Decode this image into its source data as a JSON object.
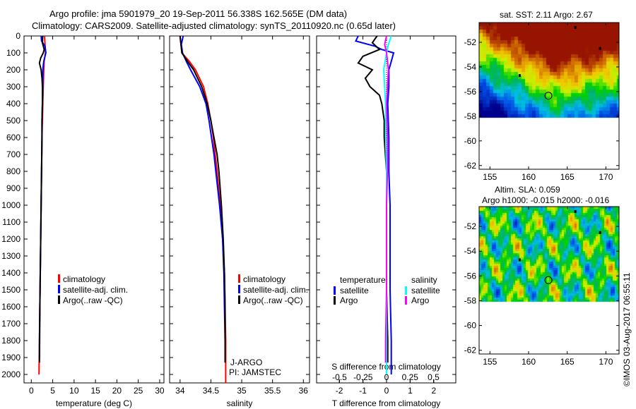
{
  "title_line1": "Argo profile: jma 5901979_20 19-Sep-2011 56.338S 162.565E (DM data)",
  "title_line2": "Climatology: CARS2009. Satellite-adjusted climatology: synTS_20110920.nc (0.65d later)",
  "colors": {
    "climatology": "#ff0000",
    "satellite": "#0000ff",
    "argo": "#000000",
    "sal_satellite": "#00ffff",
    "sal_argo": "#ff00ff"
  },
  "chart_data": [
    {
      "type": "line",
      "name": "temperature-profile",
      "xlabel": "temperature (deg C)",
      "ylabel": "depth",
      "xlim": [
        -1.7,
        31
      ],
      "ylim": [
        2050,
        0
      ],
      "xticks": [
        0,
        5,
        10,
        15,
        20,
        25,
        30
      ],
      "yticks": [
        0,
        100,
        200,
        300,
        400,
        500,
        600,
        700,
        800,
        900,
        1000,
        1100,
        1200,
        1300,
        1400,
        1500,
        1600,
        1700,
        1800,
        1900,
        2000
      ],
      "legend": [
        "climatology",
        "satellite-adj. clim.",
        "Argo(..raw -QC)"
      ],
      "series": [
        {
          "name": "climatology",
          "color": "#ff0000",
          "depth": [
            0,
            50,
            100,
            150,
            200,
            300,
            400,
            500,
            600,
            800,
            1000,
            1200,
            1400,
            1600,
            1800,
            2000
          ],
          "values": [
            3.1,
            3.2,
            3.3,
            3.0,
            2.9,
            2.8,
            2.7,
            2.6,
            2.5,
            2.4,
            2.3,
            2.2,
            2.1,
            2.0,
            1.9,
            1.8
          ]
        },
        {
          "name": "satellite-adj. clim.",
          "color": "#0000ff",
          "depth": [
            0,
            30,
            60,
            100,
            150,
            200,
            300,
            400,
            500,
            600,
            800,
            1000,
            1200,
            1400,
            1600,
            1800,
            1900
          ],
          "values": [
            2.3,
            2.4,
            3.2,
            3.4,
            2.9,
            2.7,
            2.7,
            2.6,
            2.5,
            2.5,
            2.4,
            2.3,
            2.2,
            2.1,
            2.0,
            1.9,
            1.9
          ]
        },
        {
          "name": "Argo(..raw -QC)",
          "color": "#000000",
          "depth": [
            0,
            40,
            80,
            100,
            130,
            160,
            200,
            250,
            300,
            400,
            500,
            600,
            800,
            1000,
            1200,
            1400,
            1600,
            1800,
            1930
          ],
          "values": [
            2.67,
            2.6,
            3.0,
            2.8,
            2.2,
            1.9,
            2.3,
            2.5,
            2.6,
            2.6,
            2.5,
            2.5,
            2.4,
            2.3,
            2.2,
            2.1,
            2.0,
            1.95,
            1.9
          ]
        }
      ]
    },
    {
      "type": "line",
      "name": "salinity-profile",
      "xlabel": "salinity",
      "xlim": [
        33.83,
        36.1
      ],
      "ylim": [
        2050,
        0
      ],
      "xticks": [
        34,
        34.5,
        35,
        35.5,
        36
      ],
      "legend": [
        "climatology",
        "satellite-adj. clim.",
        "Argo(..raw -QC)"
      ],
      "annotations": [
        "J-ARGO",
        "PI: JAMSTEC"
      ],
      "series": [
        {
          "name": "climatology",
          "color": "#ff0000",
          "depth": [
            0,
            100,
            150,
            200,
            300,
            400,
            500,
            600,
            700,
            800,
            1000,
            1200,
            1400,
            1600,
            1800,
            2050
          ],
          "values": [
            34.0,
            34.03,
            34.15,
            34.25,
            34.38,
            34.45,
            34.5,
            34.54,
            34.57,
            34.6,
            34.65,
            34.69,
            34.72,
            34.73,
            34.74,
            34.74
          ]
        },
        {
          "name": "satellite-adj. clim.",
          "color": "#0000ff",
          "depth": [
            0,
            50,
            100,
            150,
            200,
            300,
            400,
            500,
            600,
            700,
            800,
            1000,
            1200,
            1400,
            1600,
            1800,
            1900
          ],
          "values": [
            34.05,
            34.02,
            34.04,
            34.1,
            34.17,
            34.32,
            34.42,
            34.47,
            34.51,
            34.55,
            34.58,
            34.64,
            34.69,
            34.71,
            34.72,
            34.73,
            34.73
          ]
        },
        {
          "name": "Argo(..raw -QC)",
          "color": "#000000",
          "depth": [
            0,
            100,
            150,
            200,
            300,
            400,
            500,
            600,
            700,
            800,
            1000,
            1200,
            1400,
            1600,
            1800,
            1930
          ],
          "values": [
            34.0,
            34.03,
            34.12,
            34.22,
            34.35,
            34.44,
            34.5,
            34.55,
            34.6,
            34.63,
            34.67,
            34.7,
            34.72,
            34.73,
            34.73,
            34.73
          ]
        }
      ]
    },
    {
      "type": "line",
      "name": "difference-profile",
      "xlabel": "T difference from climatology",
      "xlabel2": "S difference from climatology",
      "xlim": [
        -2.96,
        2.93
      ],
      "xticks": [
        -2,
        -1,
        0,
        1,
        2
      ],
      "xticks2": [
        "-0.5",
        "-0.25",
        "0",
        "0.25",
        "0.5"
      ],
      "legend_headers": [
        "temperature",
        "salinity"
      ],
      "legend": [
        "satellite",
        "Argo",
        "satellite",
        "Argo"
      ],
      "series": [
        {
          "name": "temperature satellite",
          "color": "#0000ff",
          "depth": [
            0,
            30,
            60,
            80,
            100,
            150,
            200,
            300,
            400,
            600,
            800,
            1000,
            1200,
            1500,
            1800,
            2000
          ],
          "values": [
            -1.2,
            -1.3,
            -0.5,
            -0.2,
            0.3,
            0.2,
            0.1,
            0.1,
            0.05,
            0.1,
            0.1,
            0.15,
            0.15,
            0.15,
            0.2,
            0.2
          ]
        },
        {
          "name": "temperature Argo",
          "color": "#000000",
          "depth": [
            0,
            40,
            80,
            120,
            160,
            200,
            250,
            300,
            350,
            400,
            500,
            600,
            800,
            1000,
            1200,
            1500,
            1800,
            1930
          ],
          "values": [
            -0.4,
            -0.6,
            -0.3,
            -1.0,
            -1.2,
            -0.6,
            -0.9,
            -0.7,
            -0.3,
            -0.2,
            -0.1,
            -0.1,
            0.0,
            0.0,
            0.0,
            0.0,
            0.05,
            0.05
          ]
        },
        {
          "name": "salinity satellite",
          "color": "#00ffff",
          "depth": [
            0,
            50,
            100,
            200,
            300,
            400,
            600,
            800,
            1000,
            1200,
            1500,
            1800,
            2000
          ],
          "values": [
            0.05,
            0.02,
            0.0,
            -0.03,
            -0.02,
            -0.01,
            -0.01,
            0.0,
            0.0,
            0.0,
            0.0,
            0.0,
            0.0
          ]
        },
        {
          "name": "salinity Argo",
          "color": "#ff00ff",
          "depth": [
            0,
            50,
            100,
            200,
            300,
            400,
            600,
            800,
            1000,
            1200,
            1500,
            1800,
            1930
          ],
          "values": [
            0.0,
            -0.02,
            0.0,
            0.02,
            0.01,
            0.0,
            0.01,
            0.01,
            0.0,
            0.0,
            0.0,
            -0.01,
            -0.01
          ]
        }
      ]
    }
  ],
  "map_sst": {
    "title": "sat. SST: 2.11 Argo: 2.67",
    "lon_ticks": [
      155,
      160,
      165,
      170
    ],
    "lat_ticks": [
      "-52",
      "-54",
      "-56",
      "-58",
      "-60",
      "-62"
    ],
    "argo_position": {
      "lon": 162.565,
      "lat": -56.338
    }
  },
  "map_sla": {
    "title1": "Altim. SLA: 0.059",
    "title2": "Argo h1000: -0.015 h2000: -0.016",
    "lon_ticks": [
      155,
      160,
      165,
      170
    ],
    "lat_ticks": [
      "-52",
      "-54",
      "-56",
      "-58",
      "-60",
      "-62"
    ],
    "argo_position": {
      "lon": 162.565,
      "lat": -56.338
    }
  },
  "credit": "©IMOS 03-Aug-2017 06:55:11"
}
